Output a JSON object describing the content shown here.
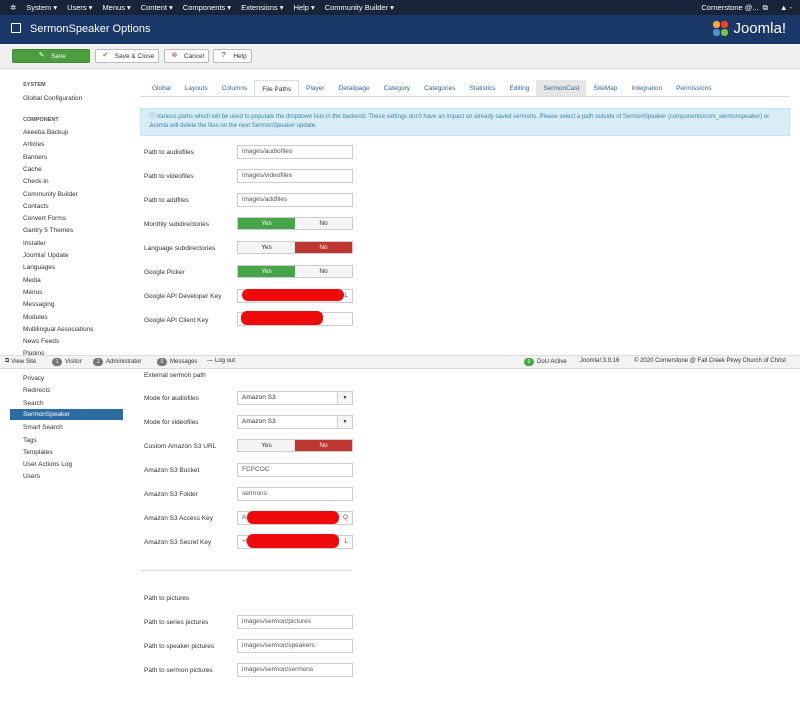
{
  "topnav": {
    "menu": [
      "System",
      "Users",
      "Menus",
      "Content",
      "Components",
      "Extensions",
      "Help",
      "Community Builder"
    ],
    "user": "Cornerstone @...",
    "user_menu": "▲ -"
  },
  "header": {
    "title": "SermonSpeaker Options",
    "logo_text": "Joomla!"
  },
  "toolbar": {
    "save": "Save",
    "save_close": "Save & Close",
    "cancel": "Cancel",
    "help": "Help"
  },
  "sidebar": {
    "system_heading": "SYSTEM",
    "system_item": "Global Configuration",
    "component_heading": "COMPONENT",
    "items_top": [
      "Akeeba Backup",
      "Articles",
      "Banners",
      "Cache",
      "Check-in",
      "Community Builder",
      "Contacts",
      "Convert Forms",
      "Gantry 5 Themes",
      "Installer",
      "Joomla! Update",
      "Languages",
      "Media",
      "Menus",
      "Messaging",
      "Modules",
      "Multilingual Associations",
      "News Feeds",
      "Plugins"
    ],
    "items_bottom": [
      "Privacy",
      "Redirects",
      "Search",
      "SermonSpeaker",
      "Smart Search",
      "Tags",
      "Templates",
      "User Actions Log",
      "Users"
    ]
  },
  "tabs": [
    "Global",
    "Layouts",
    "Columns",
    "File Paths",
    "Player",
    "Detailpage",
    "Category",
    "Categories",
    "Statistics",
    "Editing",
    "SermonCast",
    "SiteMap",
    "Integration",
    "Permissions"
  ],
  "active_tab": "File Paths",
  "alert": "Various paths which will be used to populate the dropdown lists in the backend. These settings don't have an impact on already saved sermons. Please select a path outside of SermonSpeaker (components/com_sermonspeaker) or Joomla will delete the files on the next SermonSpeaker update.",
  "form": {
    "audiofiles_label": "Path to audiofiles",
    "audiofiles": "images/audiofiles",
    "videofiles_label": "Path to videofiles",
    "videofiles": "images/videofiles",
    "addfiles_label": "Path to addfiles",
    "addfiles": "images/addfiles",
    "monthly_label": "Monthly subdirectories",
    "language_label": "Language subdirectories",
    "picker_label": "Google Picker",
    "dev_key_label": "Google API Developer Key",
    "dev_key_tail": "L",
    "client_key_label": "Google API Client Key",
    "yes": "Yes",
    "no": "No",
    "external_heading": "External sermon path",
    "mode_audio_label": "Mode for audiofiles",
    "mode_audio": "Amazon S3",
    "mode_video_label": "Mode for videofiles",
    "mode_video": "Amazon S3",
    "custom_url_label": "Custom Amazon S3 URL",
    "bucket_label": "Amazon S3 Bucket",
    "bucket": "FCPCOC",
    "folder_label": "Amazon S3 Folder",
    "folder": "sermons",
    "access_key_label": "Amazon S3 Access Key",
    "access_key_head": "A",
    "access_key_tail": "Q",
    "secret_key_label": "Amazon S3 Secret Key",
    "secret_key_head": "+I",
    "secret_key_tail": "L",
    "pictures_heading": "Path to pictures",
    "series_pic_label": "Path to series pictures",
    "series_pic": "images/sermon/pictures",
    "speaker_pic_label": "Path to speaker pictures",
    "speaker_pic": "images/sermon/speakers",
    "sermon_pic_label": "Path to sermon pictures",
    "sermon_pic": "images/sermon/sermons"
  },
  "statusbar": {
    "view_site": "View Site",
    "visitor_count": "1",
    "visitor": "Visitor",
    "admin_count": "1",
    "admin": "Administrator",
    "messages_count": "0",
    "messages": "Messages",
    "logout": "Log out",
    "dou_count": "0",
    "dou": "DoU Active",
    "version": "Joomla! 3.9.16",
    "copyright": "© 2020 Cornerstone @ Fall Creek Pkwy Church of Christ"
  }
}
